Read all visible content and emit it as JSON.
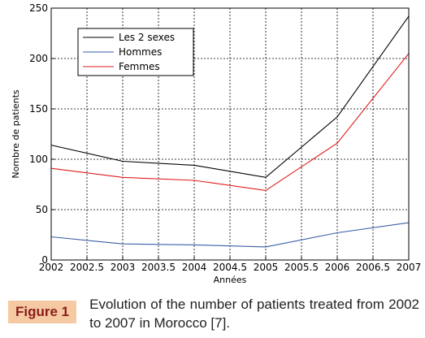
{
  "chart_data": {
    "type": "line",
    "x": [
      2002,
      2003,
      2004,
      2005,
      2006,
      2007
    ],
    "series": [
      {
        "name": "Les 2 sexes",
        "color": "#000000",
        "values": [
          114,
          98,
          94,
          82,
          142,
          242
        ]
      },
      {
        "name": "Hommes",
        "color": "#3a5fa8",
        "values": [
          23,
          16,
          15,
          13,
          27,
          37
        ]
      },
      {
        "name": "Femmes",
        "color": "#e01b1b",
        "values": [
          91,
          82,
          79,
          69,
          116,
          205
        ]
      }
    ],
    "xlabel": "Années",
    "ylabel": "Nombre de patients",
    "xlim": [
      2002,
      2007
    ],
    "ylim": [
      0,
      250
    ],
    "xticks": [
      "2002",
      "2002.5",
      "2003",
      "2003.5",
      "2004",
      "2004.5",
      "2005",
      "2005.5",
      "2006",
      "2006.5",
      "2007"
    ],
    "yticks": [
      "0",
      "50",
      "100",
      "150",
      "200",
      "250"
    ],
    "grid": "dashed",
    "legend": "top-left"
  },
  "caption": {
    "label": "Figure 1",
    "text": "Evolution of the number of patients treated from 2002 to 2007 in Morocco [7]."
  }
}
